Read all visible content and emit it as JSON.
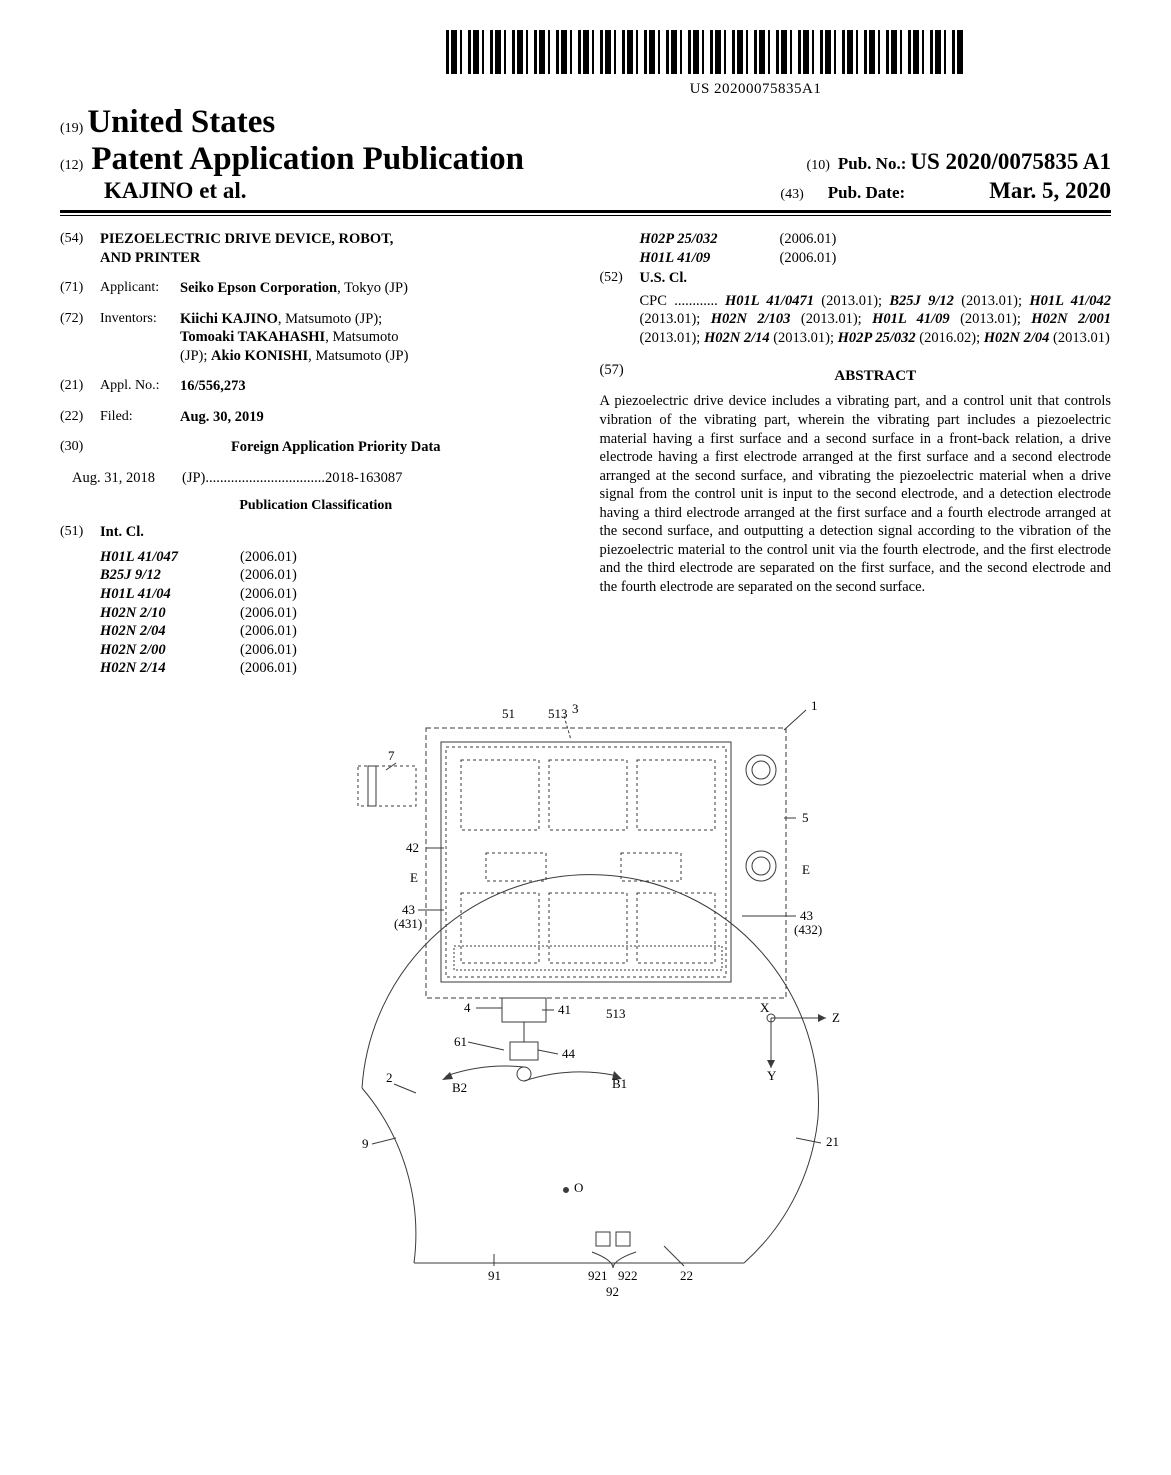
{
  "barcode_number": "US 20200075835A1",
  "header": {
    "inid19": "(19)",
    "country": "United States",
    "inid12": "(12)",
    "doc_type": "Patent Application Publication",
    "authors": "KAJINO et al.",
    "inid10": "(10)",
    "pubno_label": "Pub. No.:",
    "pubno": "US 2020/0075835 A1",
    "inid43": "(43)",
    "pubdate_label": "Pub. Date:",
    "pubdate": "Mar. 5, 2020"
  },
  "left": {
    "f54": {
      "num": "(54)",
      "title_l1": "PIEZOELECTRIC DRIVE DEVICE, ROBOT,",
      "title_l2": "AND PRINTER"
    },
    "f71": {
      "num": "(71)",
      "lbl": "Applicant:",
      "val": "Seiko Epson Corporation",
      "loc": ", Tokyo (JP)"
    },
    "f72": {
      "num": "(72)",
      "lbl": "Inventors:",
      "v1": "Kiichi KAJINO",
      "l1": ", Matsumoto (JP);",
      "v2": "Tomoaki TAKAHASHI",
      "l2": ", Matsumoto",
      "l2b": "(JP); ",
      "v3": "Akio KONISHI",
      "l3": ", Matsumoto (JP)"
    },
    "f21": {
      "num": "(21)",
      "lbl": "Appl. No.:",
      "val": "16/556,273"
    },
    "f22": {
      "num": "(22)",
      "lbl": "Filed:",
      "val": "Aug. 30, 2019"
    },
    "f30": {
      "num": "(30)",
      "head": "Foreign Application Priority Data"
    },
    "fp": {
      "date": "Aug. 31, 2018",
      "cc": "(JP)",
      "dots": " ................................. ",
      "appno": "2018-163087"
    },
    "pubclass_head": "Publication Classification",
    "f51": {
      "num": "(51)",
      "lbl": "Int. Cl."
    },
    "intcl": [
      {
        "code": "H01L 41/047",
        "ver": "(2006.01)"
      },
      {
        "code": "B25J 9/12",
        "ver": "(2006.01)"
      },
      {
        "code": "H01L 41/04",
        "ver": "(2006.01)"
      },
      {
        "code": "H02N 2/10",
        "ver": "(2006.01)"
      },
      {
        "code": "H02N 2/04",
        "ver": "(2006.01)"
      },
      {
        "code": "H02N 2/00",
        "ver": "(2006.01)"
      },
      {
        "code": "H02N 2/14",
        "ver": "(2006.01)"
      }
    ]
  },
  "right": {
    "intcl_cont": [
      {
        "code": "H02P 25/032",
        "ver": "(2006.01)"
      },
      {
        "code": "H01L 41/09",
        "ver": "(2006.01)"
      }
    ],
    "f52": {
      "num": "(52)",
      "lbl": "U.S. Cl."
    },
    "cpc_lead": "CPC ............ ",
    "cpc": [
      {
        "code": "H01L 41/0471",
        "date": "(2013.01); "
      },
      {
        "code": "B25J 9/12",
        "date": "(2013.01); "
      },
      {
        "code": "H01L 41/042",
        "date": "(2013.01); "
      },
      {
        "code": "H02N 2/103",
        "date": "(2013.01); "
      },
      {
        "code": "H01L 41/09",
        "date": "(2013.01); "
      },
      {
        "code": "H02N 2/001",
        "date": "(2013.01); "
      },
      {
        "code": "H02N 2/14",
        "date": "(2013.01); "
      },
      {
        "code": "H02P 25/032",
        "date": "(2016.02); "
      },
      {
        "code": "H02N 2/04",
        "date": "(2013.01)"
      }
    ],
    "f57": {
      "num": "(57)",
      "head": "ABSTRACT"
    },
    "abstract": "A piezoelectric drive device includes a vibrating part, and a control unit that controls vibration of the vibrating part, wherein the vibrating part includes a piezoelectric material having a first surface and a second surface in a front-back relation, a drive electrode having a first electrode arranged at the first surface and a second electrode arranged at the second surface, and vibrating the piezoelectric material when a drive signal from the control unit is input to the second electrode, and a detection electrode having a third electrode arranged at the first surface and a fourth electrode arranged at the second surface, and outputting a detection signal according to the vibration of the piezoelectric material to the control unit via the fourth electrode, and the first electrode and the third electrode are separated on the first surface, and the second electrode and the fourth electrode are separated on the second surface."
  },
  "figure": {
    "labels": {
      "r1": "1",
      "r3": "3",
      "r51": "51",
      "r513a": "513",
      "r513b": "513",
      "r7": "7",
      "r42": "42",
      "r5": "5",
      "rE1": "E",
      "rE2": "E",
      "r43a": "43",
      "r431": "(431)",
      "r43b": "43",
      "r432": "(432)",
      "r4": "4",
      "r41": "41",
      "r61": "61",
      "r44": "44",
      "r2": "2",
      "rB2": "B2",
      "rB1": "B1",
      "rX": "X",
      "rY": "Y",
      "rZ": "Z",
      "rO": "O",
      "r9": "9",
      "r21": "21",
      "r91": "91",
      "r921": "921",
      "r922": "922",
      "r22": "22",
      "r92": "92"
    },
    "style": {
      "stroke": "#3a3a3a",
      "stroke_dash": "4 3",
      "stroke_thin": 0.9,
      "stroke_med": 1.2
    }
  }
}
